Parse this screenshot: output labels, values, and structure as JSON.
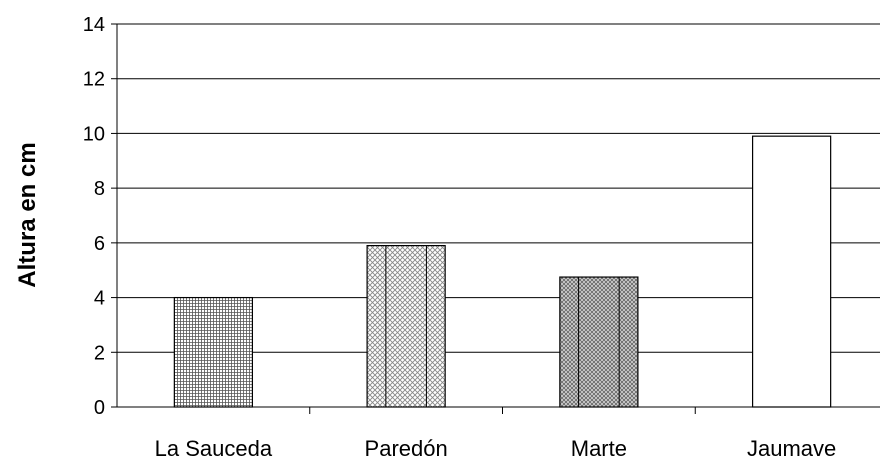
{
  "chart_data": {
    "type": "bar",
    "title": "",
    "xlabel": "",
    "ylabel": "Altura en cm",
    "ylim": [
      0,
      14
    ],
    "yticks": [
      0,
      2,
      4,
      6,
      8,
      10,
      12,
      14
    ],
    "grid": "horizontal",
    "legend": "none",
    "categories": [
      "La Sauceda",
      "Paredón",
      "Marte",
      "Jaumave"
    ],
    "values": [
      4.0,
      5.9,
      4.75,
      9.9
    ],
    "bar_styles": [
      "fine-grid-hatch",
      "light-crosshatch",
      "dense-crosshatch",
      "white"
    ]
  }
}
